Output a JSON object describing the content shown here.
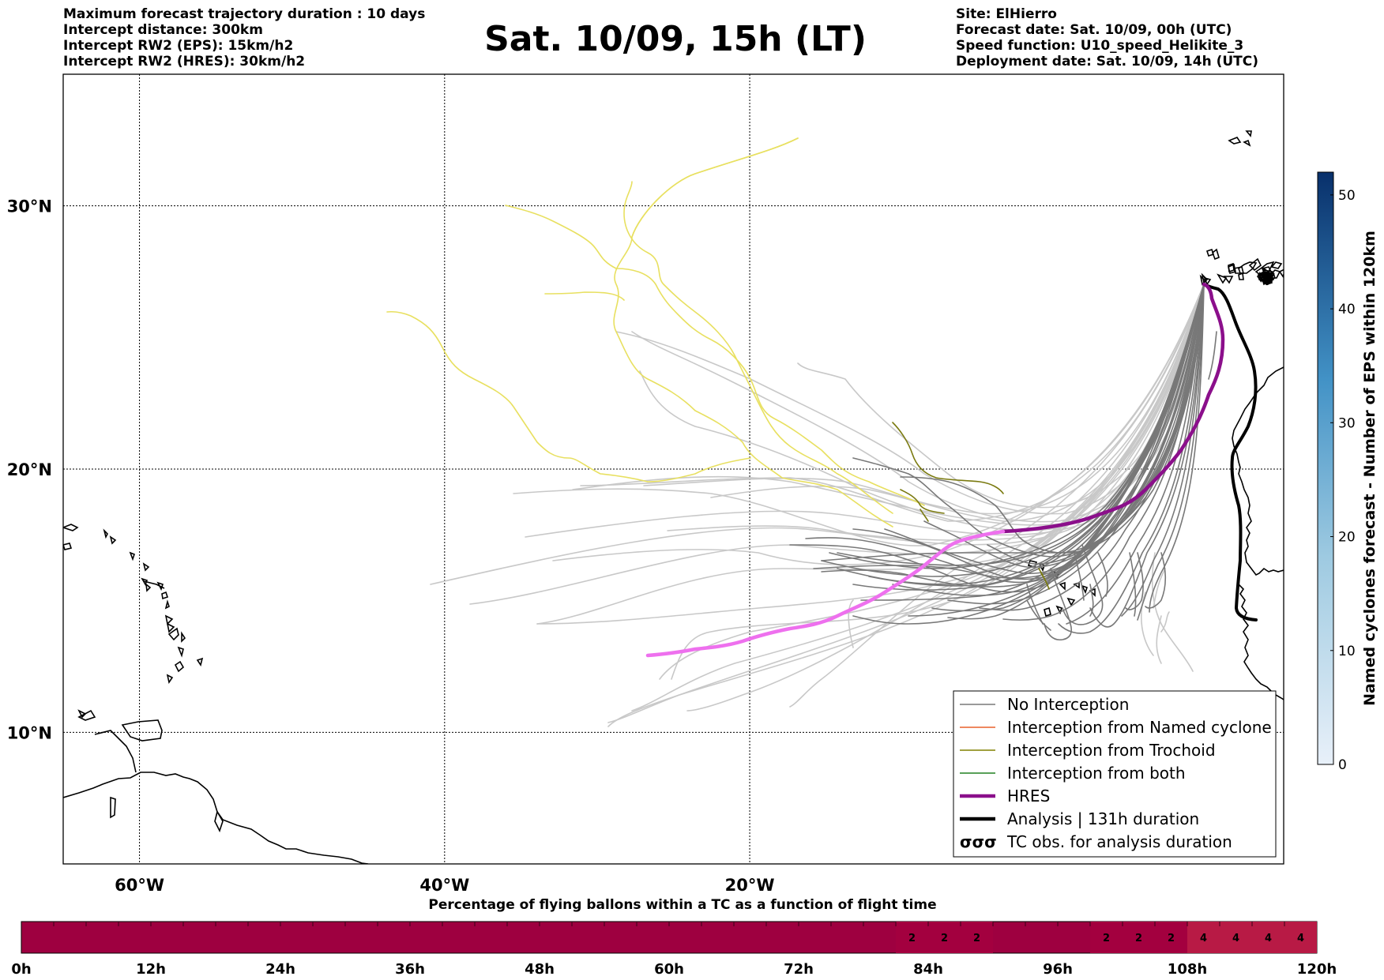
{
  "header": {
    "left_lines": [
      "Maximum forecast trajectory duration : 10 days",
      "Intercept distance: 300km",
      "Intercept RW2 (EPS):  15km/h2",
      "Intercept RW2 (HRES): 30km/h2"
    ],
    "title": "Sat. 10/09, 15h (LT)",
    "right_lines": [
      "Site: ElHierro",
      "Forecast date: Sat. 10/09, 00h (UTC)",
      "Speed function: U10_speed_Helikite_3",
      "Deployment date: Sat. 10/09, 14h (UTC)"
    ]
  },
  "map": {
    "lon_range": [
      -65,
      15
    ],
    "lat_range": [
      5,
      35
    ],
    "lon_ticks": [
      {
        "value": -60,
        "label": "60°W"
      },
      {
        "value": -40,
        "label": "40°W"
      },
      {
        "value": -20,
        "label": "20°W"
      }
    ],
    "lat_ticks": [
      {
        "value": 30,
        "label": "30°N"
      },
      {
        "value": 20,
        "label": "20°N"
      },
      {
        "value": 10,
        "label": "10°N"
      }
    ],
    "grid": true,
    "colors": {
      "eps_no_interception": "#787878",
      "eps_faded": "#c8c8c8",
      "yellow": "#e8e060",
      "trochoid": "#7a7a10",
      "hres_past": "#8b0f8b",
      "hres_future": "#ee70ee",
      "analysis": "#000000"
    }
  },
  "legend": {
    "items": [
      {
        "label": "No Interception",
        "color": "#787878",
        "style": "thin"
      },
      {
        "label": "Interception from Named cyclone",
        "color": "#e8602c",
        "style": "thin"
      },
      {
        "label": "Interception from Trochoid",
        "color": "#808000",
        "style": "thin"
      },
      {
        "label": "Interception from both",
        "color": "#208020",
        "style": "thin"
      },
      {
        "label": "HRES",
        "color": "#8b0f8b",
        "style": "thick"
      },
      {
        "label": "Analysis | 131h duration",
        "color": "#000000",
        "style": "thick"
      },
      {
        "label": "TC obs. for analysis duration",
        "color": "#000000",
        "style": "symbol"
      }
    ]
  },
  "colorbar": {
    "title": "Named cyclones forecast - Number of EPS within 120km",
    "ticks": [
      0,
      10,
      20,
      30,
      40,
      50
    ],
    "range": [
      0,
      52
    ],
    "color_low": "#e8f0f9",
    "color_high": "#08306b"
  },
  "timeline": {
    "title": "Percentage of flying ballons within a TC as a function of flight time",
    "range_hours": [
      0,
      120
    ],
    "tick_labels": [
      "0h",
      "12h",
      "24h",
      "36h",
      "48h",
      "60h",
      "72h",
      "84h",
      "96h",
      "108h",
      "120h"
    ],
    "base_color": "#9e0040",
    "cells": [
      {
        "start": 81,
        "end": 84,
        "label": "2",
        "color": "#a3003f"
      },
      {
        "start": 84,
        "end": 87,
        "label": "2",
        "color": "#a3003f"
      },
      {
        "start": 87,
        "end": 90,
        "label": "2",
        "color": "#a3003f"
      },
      {
        "start": 99,
        "end": 102,
        "label": "2",
        "color": "#a3003f"
      },
      {
        "start": 102,
        "end": 105,
        "label": "2",
        "color": "#a3003f"
      },
      {
        "start": 105,
        "end": 108,
        "label": "2",
        "color": "#a3003f"
      },
      {
        "start": 108,
        "end": 111,
        "label": "4",
        "color": "#b81a45"
      },
      {
        "start": 111,
        "end": 114,
        "label": "4",
        "color": "#b81a45"
      },
      {
        "start": 114,
        "end": 117,
        "label": "4",
        "color": "#b81a45"
      },
      {
        "start": 117,
        "end": 120,
        "label": "4",
        "color": "#b81a45"
      }
    ]
  }
}
